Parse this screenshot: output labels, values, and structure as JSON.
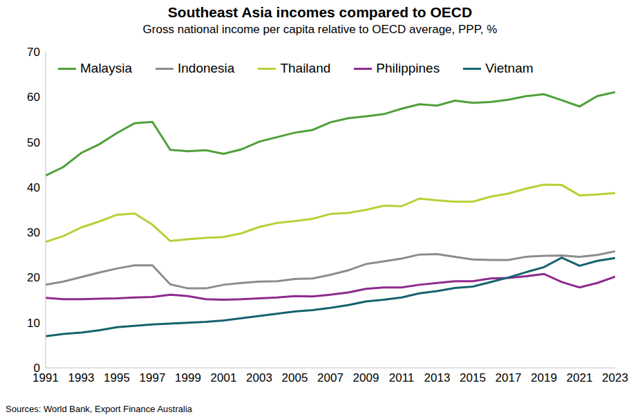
{
  "chart_data": {
    "type": "line",
    "title": "Southeast Asia incomes compared to OECD",
    "subtitle": "Gross national income per capita relative to OECD average, PPP, %",
    "source": "Sources: World Bank, Export Finance Australia",
    "x": [
      1991,
      1992,
      1993,
      1994,
      1995,
      1996,
      1997,
      1998,
      1999,
      2000,
      2001,
      2002,
      2003,
      2004,
      2005,
      2006,
      2007,
      2008,
      2009,
      2010,
      2011,
      2012,
      2013,
      2014,
      2015,
      2016,
      2017,
      2018,
      2019,
      2020,
      2021,
      2022,
      2023
    ],
    "xlim": [
      1991,
      2023
    ],
    "xticks": [
      1991,
      1993,
      1995,
      1997,
      1999,
      2001,
      2003,
      2005,
      2007,
      2009,
      2011,
      2013,
      2015,
      2017,
      2019,
      2021,
      2023
    ],
    "ylim": [
      0,
      70
    ],
    "yticks": [
      0,
      10,
      20,
      30,
      40,
      50,
      60,
      70
    ],
    "grid": false,
    "legend": "top",
    "series": [
      {
        "name": "Malaysia",
        "color": "#4ea03a",
        "values": [
          42.6,
          44.5,
          47.6,
          49.5,
          52.0,
          54.2,
          54.5,
          48.3,
          48.0,
          48.2,
          47.4,
          48.4,
          50.1,
          51.1,
          52.1,
          52.7,
          54.4,
          55.3,
          55.7,
          56.2,
          57.4,
          58.4,
          58.1,
          59.2,
          58.7,
          58.9,
          59.4,
          60.2,
          60.6,
          59.3,
          57.9,
          60.2,
          61.1
        ]
      },
      {
        "name": "Indonesia",
        "color": "#8c8c8c",
        "values": [
          18.4,
          19.1,
          20.1,
          21.1,
          22.0,
          22.7,
          22.7,
          18.5,
          17.6,
          17.6,
          18.4,
          18.8,
          19.1,
          19.2,
          19.7,
          19.8,
          20.6,
          21.6,
          23.0,
          23.6,
          24.2,
          25.1,
          25.2,
          24.6,
          24.0,
          23.9,
          23.9,
          24.6,
          24.8,
          24.9,
          24.6,
          25.0,
          25.8
        ]
      },
      {
        "name": "Thailand",
        "color": "#b4d235",
        "values": [
          27.9,
          29.2,
          31.1,
          32.4,
          33.9,
          34.2,
          31.7,
          28.1,
          28.5,
          28.8,
          29.0,
          29.8,
          31.2,
          32.1,
          32.5,
          33.0,
          34.1,
          34.3,
          35.0,
          35.9,
          35.8,
          37.5,
          37.1,
          36.8,
          36.8,
          37.9,
          38.6,
          39.7,
          40.6,
          40.5,
          38.2,
          38.4,
          38.7
        ]
      },
      {
        "name": "Philippines",
        "color": "#8e2a8e",
        "values": [
          15.5,
          15.2,
          15.2,
          15.3,
          15.4,
          15.6,
          15.7,
          16.2,
          15.9,
          15.2,
          15.1,
          15.2,
          15.4,
          15.6,
          15.9,
          15.8,
          16.2,
          16.7,
          17.5,
          17.8,
          17.8,
          18.4,
          18.8,
          19.2,
          19.2,
          19.8,
          19.9,
          20.3,
          20.8,
          19.0,
          17.8,
          18.8,
          20.2
        ]
      },
      {
        "name": "Vietnam",
        "color": "#14636e",
        "values": [
          7.0,
          7.5,
          7.8,
          8.3,
          9.0,
          9.3,
          9.6,
          9.8,
          10.0,
          10.2,
          10.5,
          11.0,
          11.5,
          12.0,
          12.5,
          12.8,
          13.3,
          13.9,
          14.7,
          15.1,
          15.6,
          16.5,
          17.0,
          17.7,
          18.0,
          19.0,
          20.0,
          21.2,
          22.3,
          24.4,
          22.6,
          23.7,
          24.3
        ]
      }
    ]
  }
}
